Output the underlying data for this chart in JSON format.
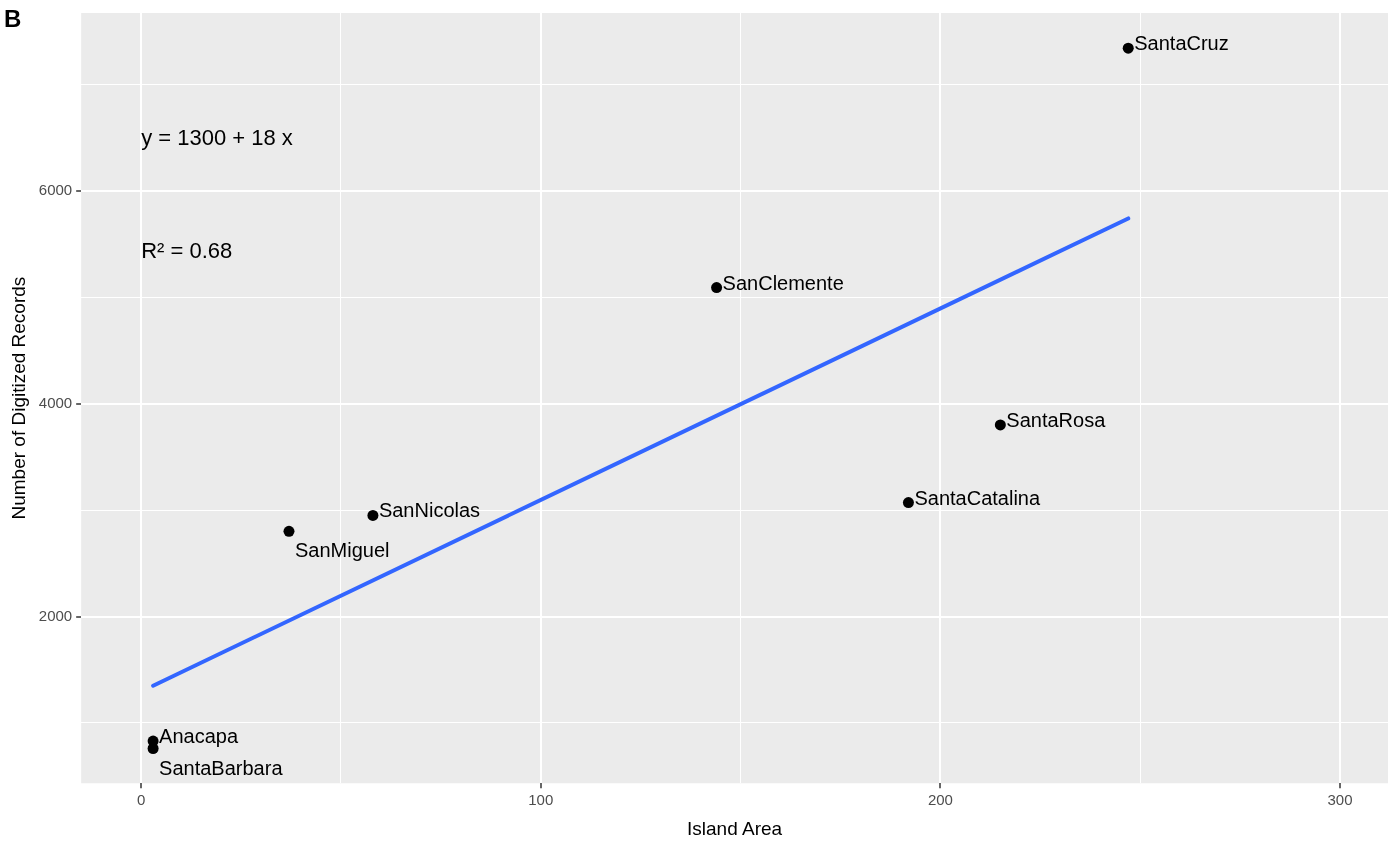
{
  "chart_data": {
    "type": "scatter",
    "title": "B",
    "xlabel": "Island Area",
    "ylabel": "Number of Digitized Records",
    "xlim": [
      -15,
      312
    ],
    "ylim": [
      434,
      7670
    ],
    "xticks": [
      0,
      {
        "value": 50,
        "label": null
      },
      100,
      {
        "value": 150,
        "label": null
      },
      200,
      {
        "value": 250,
        "label": null
      },
      300
    ],
    "yticks": [
      {
        "value": 1000,
        "label": null
      },
      2000,
      {
        "value": 3000,
        "label": null
      },
      4000,
      {
        "value": 5000,
        "label": null
      },
      6000,
      {
        "value": 7000,
        "label": null
      }
    ],
    "grid": true,
    "legend": false,
    "marker": "circle",
    "annotations": [
      "y = 1300 + 18 x",
      "R² = 0.68"
    ],
    "series": [
      {
        "name": "SantaCruz",
        "color": "#000000",
        "x": [
          247
        ],
        "values": [
          7340
        ]
      },
      {
        "name": "SanClemente",
        "color": "#000000",
        "x": [
          144
        ],
        "values": [
          5090
        ]
      },
      {
        "name": "SantaRosa",
        "color": "#000000",
        "x": [
          215
        ],
        "values": [
          3800
        ]
      },
      {
        "name": "SantaCatalina",
        "color": "#000000",
        "x": [
          192
        ],
        "values": [
          3070
        ]
      },
      {
        "name": "SanNicolas",
        "color": "#000000",
        "x": [
          58
        ],
        "values": [
          2950
        ]
      },
      {
        "name": "SanMiguel",
        "color": "#000000",
        "x": [
          37
        ],
        "values": [
          2800
        ]
      },
      {
        "name": "Anacapa",
        "color": "#000000",
        "x": [
          3
        ],
        "values": [
          830
        ]
      },
      {
        "name": "SantaBarbara",
        "color": "#000000",
        "x": [
          3
        ],
        "values": [
          760
        ]
      },
      {
        "type": "line",
        "color": "#3366ff",
        "x": [
          3,
          247
        ],
        "values": [
          1350,
          5740
        ],
        "line_style": "solid",
        "marker": "none"
      }
    ]
  }
}
